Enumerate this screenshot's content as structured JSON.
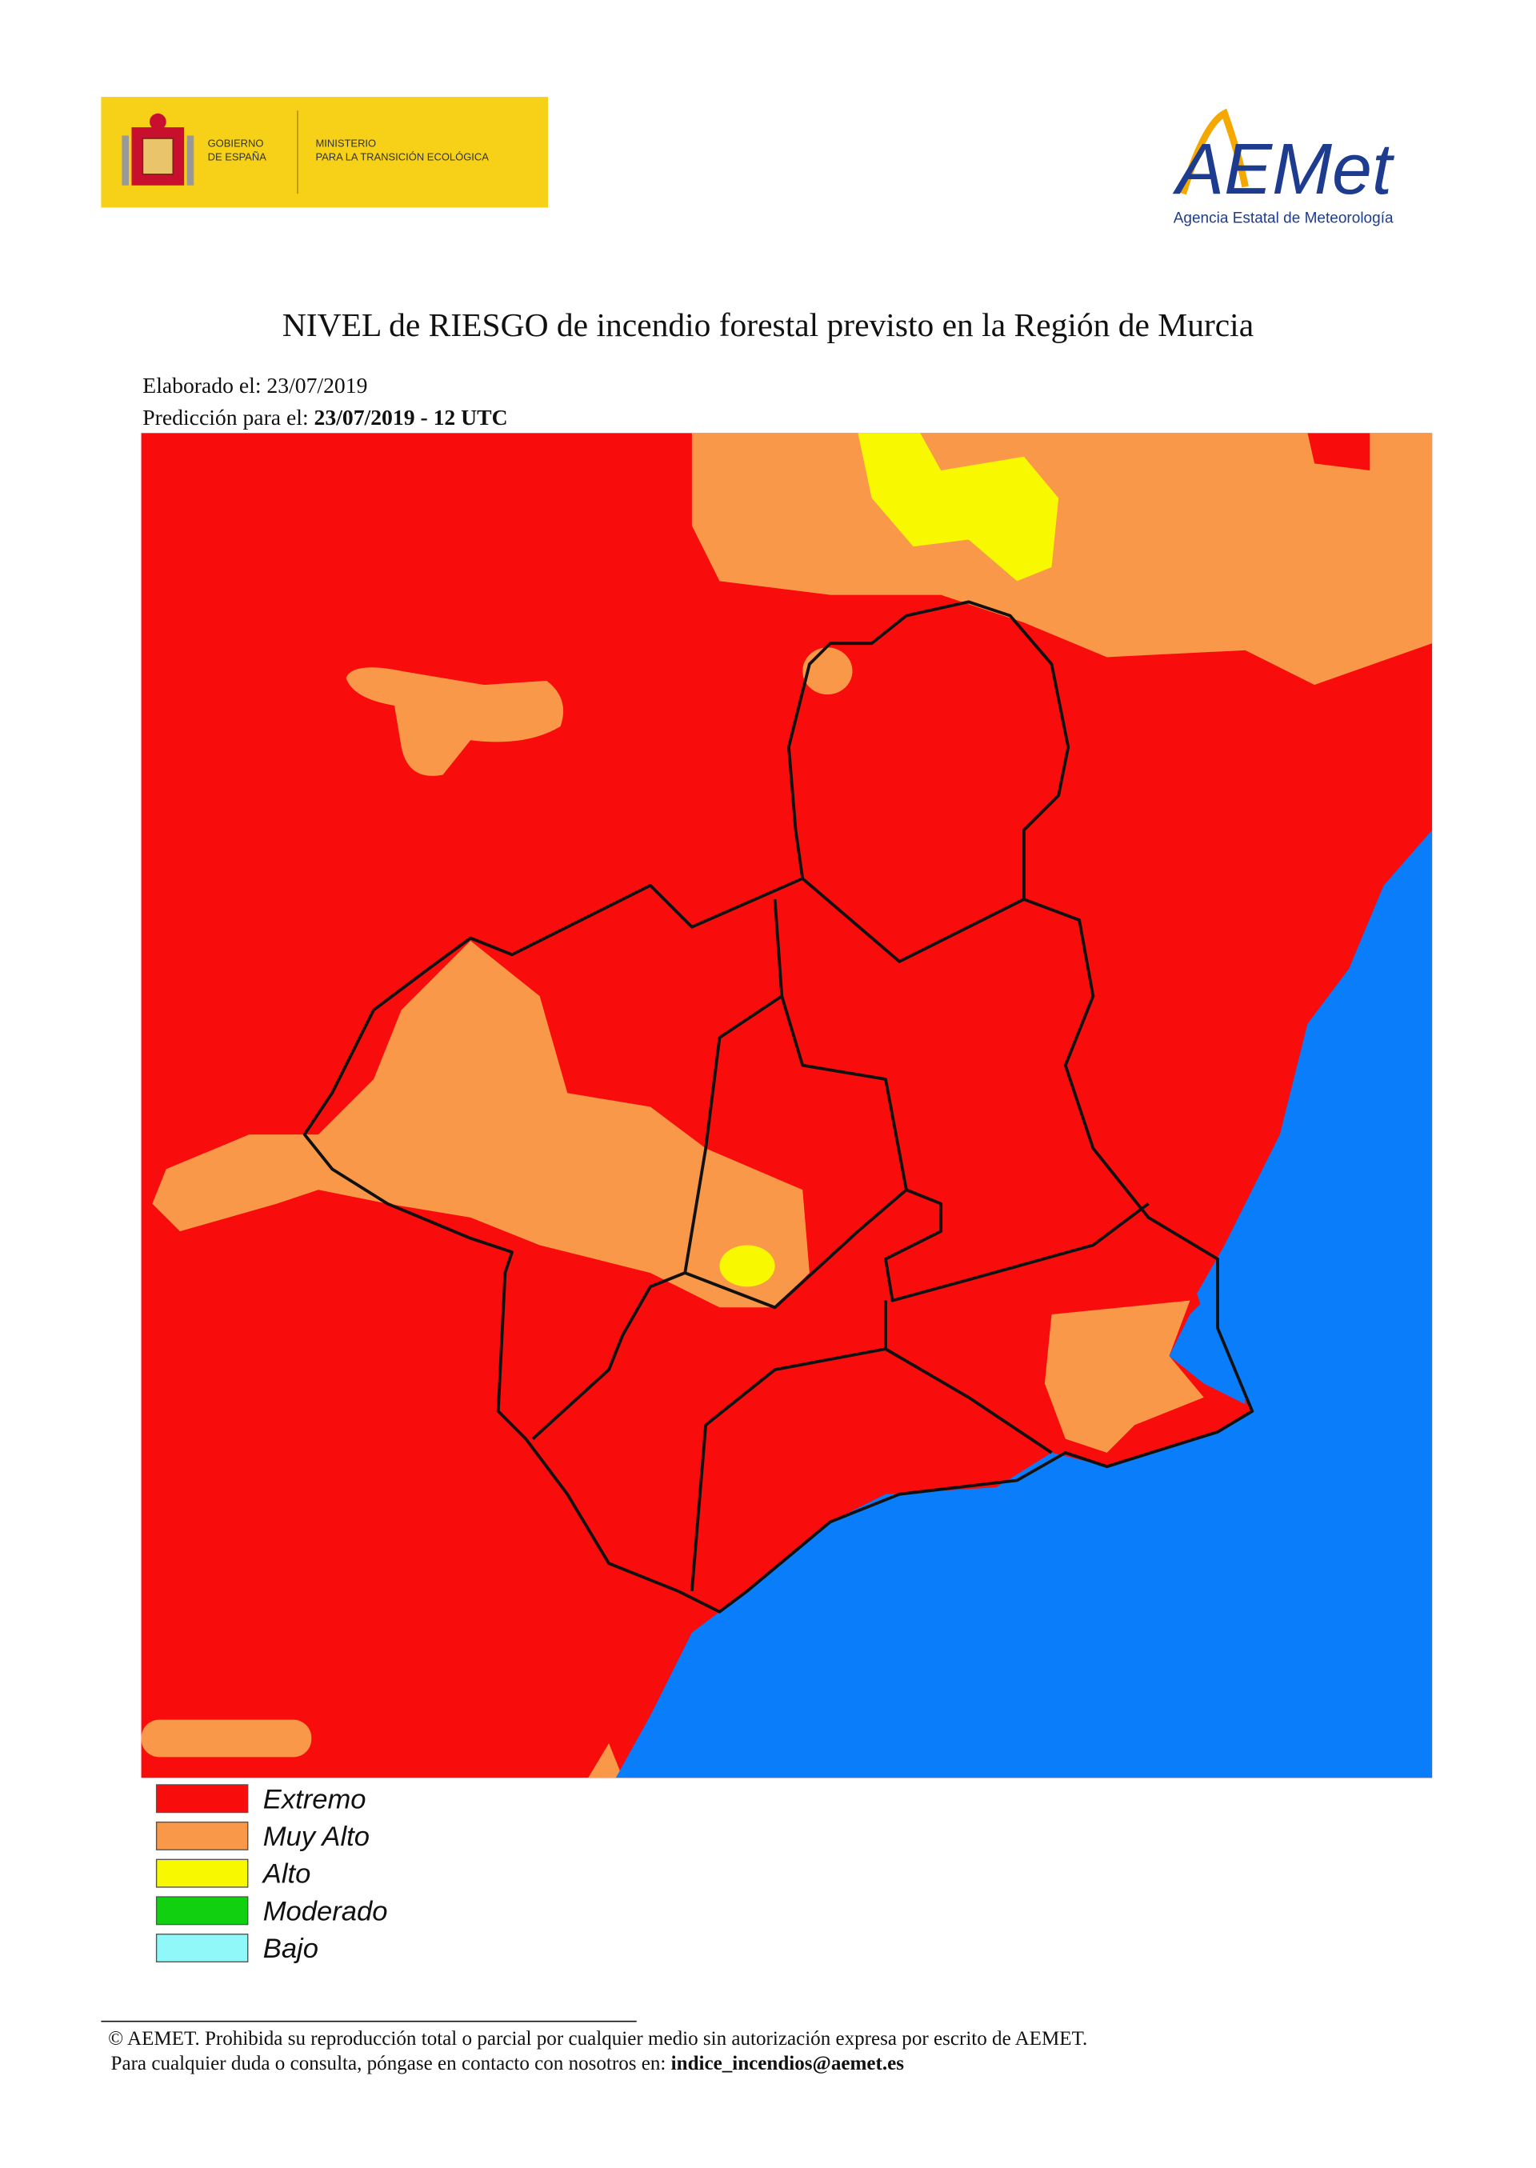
{
  "header": {
    "gov_line1": "GOBIERNO",
    "gov_line2": "DE ESPAÑA",
    "ministry_line1": "MINISTERIO",
    "ministry_line2": "PARA LA TRANSICIÓN ECOLÓGICA",
    "agency_logo": "AEMet",
    "agency_name": "Agencia Estatal de Meteorología"
  },
  "title": "NIVEL de RIESGO de incendio forestal previsto en la Región de Murcia",
  "made_on": "Elaborado el: 23/07/2019",
  "forecast_label": "Predicción para el:",
  "forecast_value": "23/07/2019 - 12 UTC",
  "legend": [
    {
      "label": "Extremo",
      "color": "#f80c0c"
    },
    {
      "label": "Muy Alto",
      "color": "#f89848"
    },
    {
      "label": "Alto",
      "color": "#f8f800"
    },
    {
      "label": "Moderado",
      "color": "#10d010"
    },
    {
      "label": "Bajo",
      "color": "#90f8f8"
    }
  ],
  "footer": {
    "line1": "© AEMET. Prohibida su reproducción total o parcial por cualquier medio sin autorización expresa por escrito de AEMET.",
    "line2": "Para cualquier duda o consulta, póngase en contacto con nosotros en:",
    "email": "indice_incendios@aemet.es"
  }
}
